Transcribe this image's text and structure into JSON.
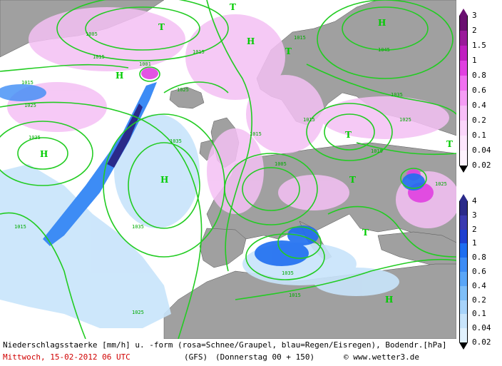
{
  "caption": "Niederschlagsstaerke [mm/h] u. -form (rosa=Schnee/Graupel, blau=Regen/Eisregen), Bodendr.[hPa]",
  "date_text": "Mittwoch, 15-02-2012  06 UTC",
  "model": "(GFS)",
  "lead_time": "(Donnerstag 00 + 150)",
  "copyright": "© www.wetter3.de",
  "colors": {
    "land": "#a0a0a0",
    "sea": "#ffffff",
    "isobar": "#22cc22",
    "date_red": "#d00000"
  },
  "legend_snow": {
    "labels": [
      "3",
      "2",
      "1.5",
      "1",
      "0.8",
      "0.6",
      "0.4",
      "0.2",
      "0.1",
      "0.04",
      "0.02"
    ],
    "colors": [
      "#6a1070",
      "#9a1a9a",
      "#c020c0",
      "#e040e0",
      "#f070f0",
      "#f59df5",
      "#f8bff8",
      "#fad6fa",
      "#fce6fc",
      "#fdf3fd",
      "#ffffff"
    ]
  },
  "legend_rain": {
    "labels": [
      "4",
      "3",
      "2",
      "1",
      "0.8",
      "0.6",
      "0.4",
      "0.2",
      "0.1",
      "0.04",
      "0.02"
    ],
    "colors": [
      "#2a2a8a",
      "#3a3ab0",
      "#1e40d0",
      "#1e6ef0",
      "#3d8cf5",
      "#5aa6f7",
      "#7fbff8",
      "#a7d3fa",
      "#c8e4fb",
      "#e1f1fd",
      "#ffffff"
    ]
  },
  "map": {
    "pressure_centers": [
      {
        "type": "H",
        "name": "azores-high"
      },
      {
        "type": "H",
        "name": "mid-atlantic-high"
      },
      {
        "type": "H",
        "name": "east-high"
      },
      {
        "type": "H",
        "name": "russia-high"
      },
      {
        "type": "H",
        "name": "greenland-high"
      },
      {
        "type": "H",
        "name": "north-africa-high"
      },
      {
        "type": "T",
        "name": "iceland-low"
      },
      {
        "type": "T",
        "name": "norway-low"
      },
      {
        "type": "T",
        "name": "barents-low"
      },
      {
        "type": "T",
        "name": "baltic-low"
      },
      {
        "type": "T",
        "name": "black-sea-low"
      },
      {
        "type": "T",
        "name": "far-east-low"
      },
      {
        "type": "T",
        "name": "balkan-low"
      }
    ],
    "isobar_labels": [
      "1035",
      "1015",
      "1025",
      "1035",
      "1015",
      "1025",
      "1035",
      "1005",
      "1015",
      "1045",
      "1035",
      "1015",
      "1015",
      "1025",
      "1025",
      "1015",
      "1005",
      "1001",
      "1015",
      "1015",
      "1019",
      "1025",
      "1035"
    ]
  }
}
